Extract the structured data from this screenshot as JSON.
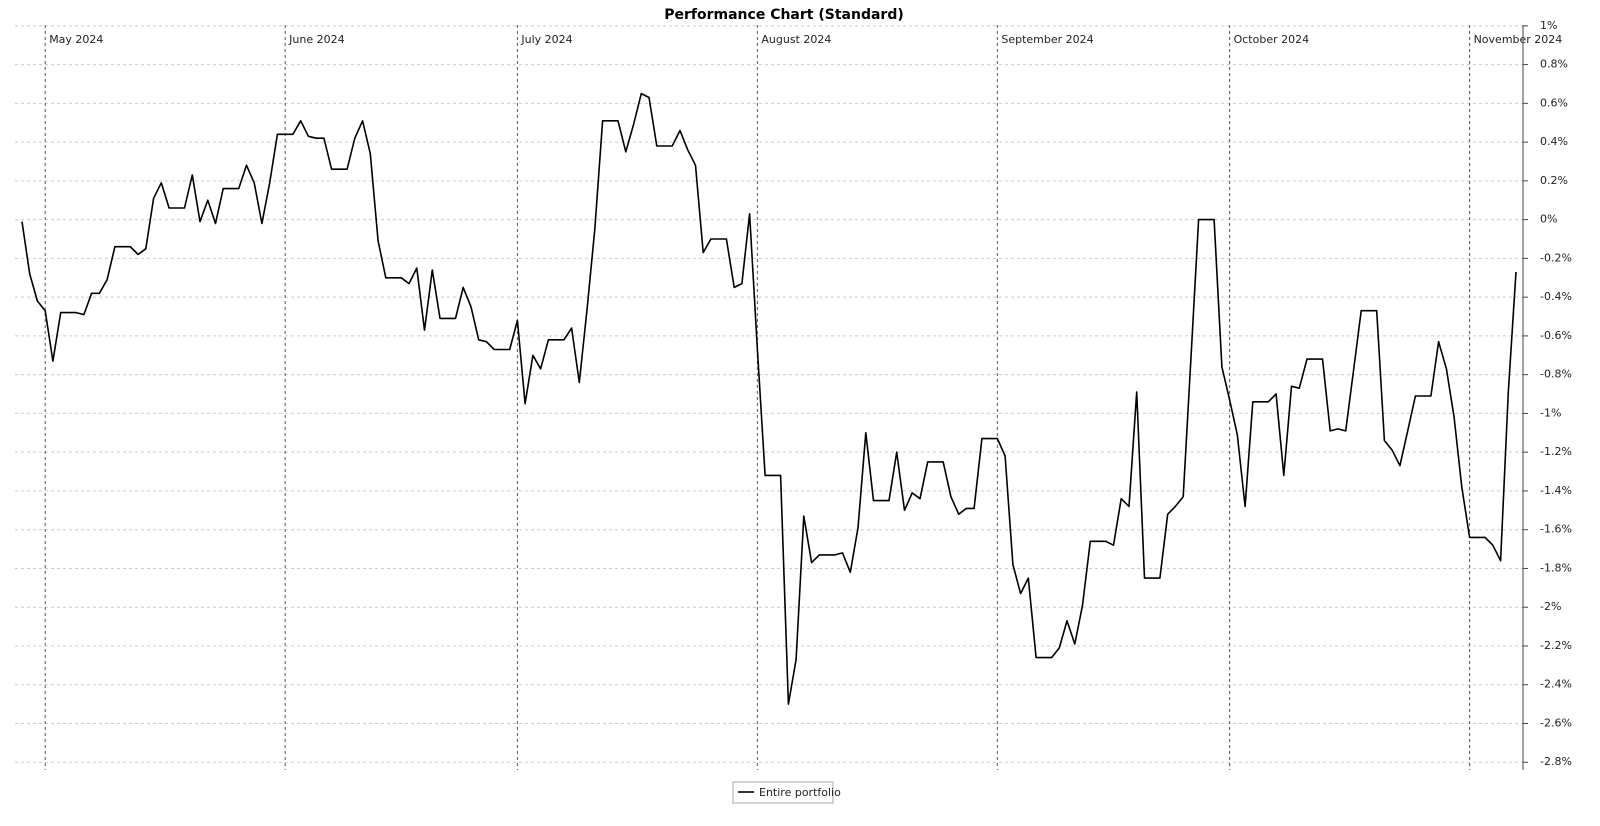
{
  "chart_data": {
    "type": "line",
    "title": "Performance Chart (Standard)",
    "series": [
      {
        "name": "Entire portfolio",
        "color": "#000000",
        "values": [
          -0.01,
          -0.28,
          -0.42,
          -0.47,
          -0.73,
          -0.48,
          -0.48,
          -0.48,
          -0.49,
          -0.38,
          -0.38,
          -0.31,
          -0.14,
          -0.14,
          -0.14,
          -0.18,
          -0.15,
          0.11,
          0.19,
          0.06,
          0.06,
          0.06,
          0.23,
          -0.01,
          0.1,
          -0.02,
          0.16,
          0.16,
          0.16,
          0.28,
          0.19,
          -0.02,
          0.19,
          0.44,
          0.44,
          0.44,
          0.51,
          0.43,
          0.42,
          0.42,
          0.26,
          0.26,
          0.26,
          0.42,
          0.51,
          0.34,
          -0.11,
          -0.3,
          -0.3,
          -0.3,
          -0.33,
          -0.25,
          -0.57,
          -0.26,
          -0.51,
          -0.51,
          -0.51,
          -0.35,
          -0.45,
          -0.62,
          -0.63,
          -0.67,
          -0.67,
          -0.67,
          -0.52,
          -0.95,
          -0.7,
          -0.77,
          -0.62,
          -0.62,
          -0.62,
          -0.56,
          -0.84,
          -0.46,
          -0.05,
          0.51,
          0.51,
          0.51,
          0.35,
          0.49,
          0.65,
          0.63,
          0.38,
          0.38,
          0.38,
          0.46,
          0.36,
          0.28,
          -0.17,
          -0.1,
          -0.1,
          -0.1,
          -0.35,
          -0.33,
          0.03,
          -0.67,
          -1.32,
          -1.32,
          -1.32,
          -2.5,
          -2.27,
          -1.53,
          -1.77,
          -1.73,
          -1.73,
          -1.73,
          -1.72,
          -1.82,
          -1.59,
          -1.1,
          -1.45,
          -1.45,
          -1.45,
          -1.2,
          -1.5,
          -1.41,
          -1.44,
          -1.25,
          -1.25,
          -1.25,
          -1.43,
          -1.52,
          -1.49,
          -1.49,
          -1.13,
          -1.13,
          -1.13,
          -1.22,
          -1.78,
          -1.93,
          -1.85,
          -2.26,
          -2.26,
          -2.26,
          -2.21,
          -2.07,
          -2.19,
          -1.99,
          -1.66,
          -1.66,
          -1.66,
          -1.68,
          -1.44,
          -1.48,
          -0.89,
          -1.85,
          -1.85,
          -1.85,
          -1.52,
          -1.48,
          -1.43,
          -0.72,
          0.0,
          0.0,
          0.0,
          -0.76,
          -0.93,
          -1.11,
          -1.48,
          -0.94,
          -0.94,
          -0.94,
          -0.9,
          -1.32,
          -0.86,
          -0.87,
          -0.72,
          -0.72,
          -0.72,
          -1.09,
          -1.08,
          -1.09,
          -0.78,
          -0.47,
          -0.47,
          -0.47,
          -1.14,
          -1.19,
          -1.27,
          -1.09,
          -0.91,
          -0.91,
          -0.91,
          -0.63,
          -0.77,
          -1.02,
          -1.38,
          -1.64,
          -1.64,
          -1.64,
          -1.68,
          -1.76,
          -0.89,
          -0.27
        ]
      }
    ],
    "xlim": [
      -0.9,
      193.9
    ],
    "xticks": [
      {
        "value": 3,
        "label": "May 2024"
      },
      {
        "value": 34,
        "label": "June 2024"
      },
      {
        "value": 64,
        "label": "July 2024"
      },
      {
        "value": 95,
        "label": "August 2024"
      },
      {
        "value": 126,
        "label": "September 2024"
      },
      {
        "value": 156,
        "label": "October 2024"
      },
      {
        "value": 187,
        "label": "November 2024"
      }
    ],
    "ylim": [
      -2.84,
      1.03
    ],
    "yticks": [
      {
        "value": 1,
        "label": "1%"
      },
      {
        "value": 0.8,
        "label": "0.8%"
      },
      {
        "value": 0.6,
        "label": "0.6%"
      },
      {
        "value": 0.4,
        "label": "0.4%"
      },
      {
        "value": 0.2,
        "label": "0.2%"
      },
      {
        "value": 0,
        "label": "0%"
      },
      {
        "value": -0.2,
        "label": "-0.2%"
      },
      {
        "value": -0.4,
        "label": "-0.4%"
      },
      {
        "value": -0.6,
        "label": "-0.6%"
      },
      {
        "value": -0.8,
        "label": "-0.8%"
      },
      {
        "value": -1,
        "label": "-1%"
      },
      {
        "value": -1.2,
        "label": "-1.2%"
      },
      {
        "value": -1.4,
        "label": "-1.4%"
      },
      {
        "value": -1.6,
        "label": "-1.6%"
      },
      {
        "value": -1.8,
        "label": "-1.8%"
      },
      {
        "value": -2,
        "label": "-2%"
      },
      {
        "value": -2.2,
        "label": "-2.2%"
      },
      {
        "value": -2.4,
        "label": "-2.4%"
      },
      {
        "value": -2.6,
        "label": "-2.6%"
      },
      {
        "value": -2.8,
        "label": "-2.8%"
      }
    ],
    "grid": true,
    "y_axis_side": "right",
    "legend": "bottom"
  }
}
